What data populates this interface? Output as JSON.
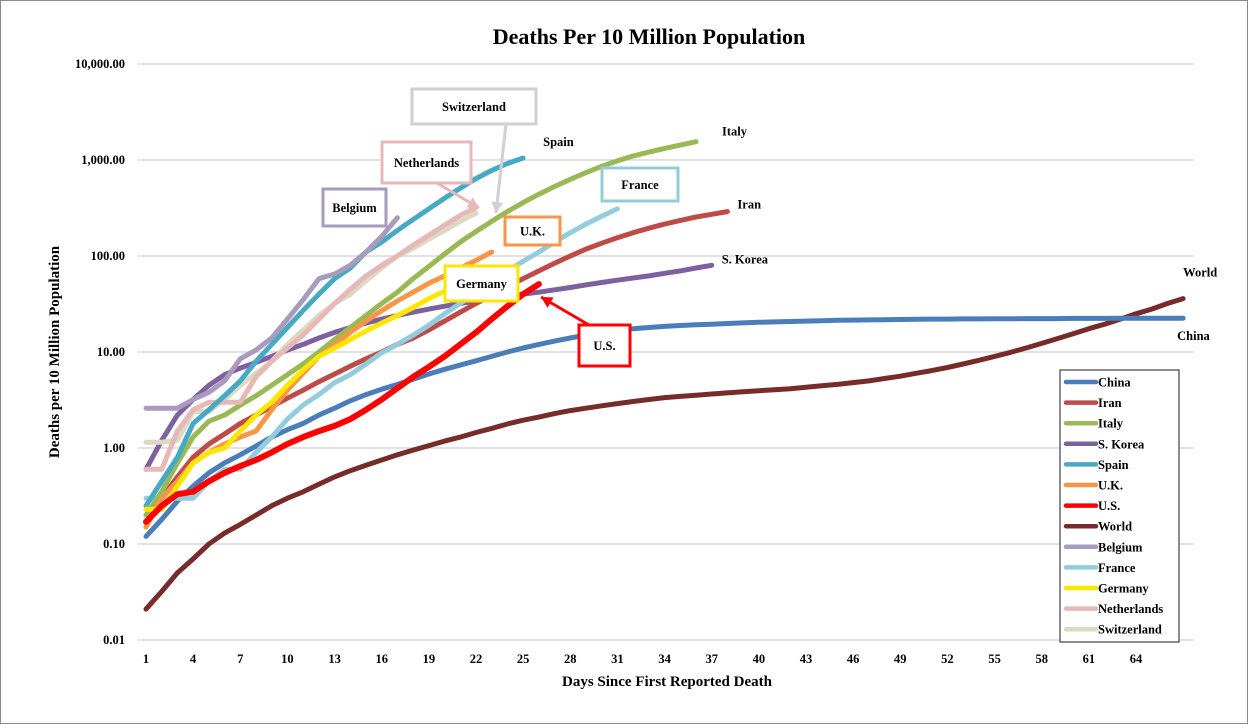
{
  "chart_data": {
    "type": "line",
    "title": "Deaths Per 10 Million Population",
    "xlabel": "Days Since First Reported Death",
    "ylabel": "Deaths per 10 Million Population",
    "yscale": "log",
    "ylim": [
      0.01,
      10000
    ],
    "xlim": [
      1,
      67
    ],
    "y_ticks": [
      0.01,
      0.1,
      1,
      10,
      100,
      1000,
      10000
    ],
    "y_tick_labels": [
      "0.01",
      "0.10",
      "1.00",
      "10.00",
      "100.00",
      "1,000.00",
      "10,000.00"
    ],
    "x_ticks": [
      1,
      4,
      7,
      10,
      13,
      16,
      19,
      22,
      25,
      28,
      31,
      34,
      37,
      40,
      43,
      46,
      49,
      52,
      55,
      58,
      61,
      64
    ],
    "x_tick_labels": [
      "1",
      "4",
      "7",
      "10",
      "13",
      "16",
      "19",
      "22",
      "25",
      "28",
      "31",
      "34",
      "37",
      "40",
      "43",
      "46",
      "49",
      "52",
      "55",
      "58",
      "61",
      "64"
    ],
    "grid": "horizontal",
    "legend_position": "bottom-right",
    "series": [
      {
        "name": "China",
        "color": "#4a7ebb",
        "values": [
          0.12,
          0.18,
          0.28,
          0.4,
          0.55,
          0.7,
          0.85,
          1.05,
          1.3,
          1.55,
          1.8,
          2.2,
          2.6,
          3.1,
          3.6,
          4.1,
          4.6,
          5.2,
          5.9,
          6.6,
          7.3,
          8.1,
          9.0,
          10.0,
          11.0,
          12.0,
          13.0,
          14.0,
          15.0,
          16.0,
          16.8,
          17.5,
          18.0,
          18.5,
          18.9,
          19.2,
          19.5,
          19.8,
          20.1,
          20.4,
          20.6,
          20.8,
          21.0,
          21.2,
          21.4,
          21.5,
          21.6,
          21.7,
          21.8,
          21.9,
          22.0,
          22.0,
          22.1,
          22.1,
          22.2,
          22.2,
          22.3,
          22.3,
          22.3,
          22.4,
          22.4,
          22.4,
          22.5,
          22.5,
          22.5,
          22.5,
          22.5
        ]
      },
      {
        "name": "Iran",
        "color": "#be4b48",
        "values": [
          0.2,
          0.3,
          0.5,
          0.8,
          1.1,
          1.4,
          1.8,
          2.2,
          2.7,
          3.3,
          4.0,
          4.9,
          5.9,
          7.1,
          8.5,
          10.0,
          12.0,
          14.0,
          17.0,
          21.0,
          26.0,
          32.0,
          39.0,
          48.0,
          58.0,
          70.0,
          84.0,
          100.0,
          118.0,
          136.0,
          155.0,
          175.0,
          195.0,
          215.0,
          235.0,
          255.0,
          272.0,
          290.0
        ]
      },
      {
        "name": "Italy",
        "color": "#98b954",
        "values": [
          0.2,
          0.35,
          0.7,
          1.3,
          1.9,
          2.2,
          2.8,
          3.5,
          4.5,
          5.8,
          7.5,
          10.0,
          13.5,
          18.0,
          24.0,
          32.0,
          42.0,
          58.0,
          78.0,
          105.0,
          140.0,
          180.0,
          230.0,
          290.0,
          360.0,
          440.0,
          530.0,
          630.0,
          740.0,
          860.0,
          980.0,
          1100.0,
          1210.0,
          1320.0,
          1430.0,
          1550.0
        ]
      },
      {
        "name": "S. Korea",
        "color": "#7d60a0",
        "values": [
          0.6,
          1.2,
          2.2,
          3.2,
          4.5,
          5.8,
          6.8,
          7.8,
          9.0,
          10.5,
          12.0,
          14.0,
          16.0,
          18.0,
          20.0,
          22.0,
          24.0,
          26.0,
          28.0,
          30.0,
          32.0,
          34.0,
          36.0,
          38.0,
          40.0,
          42.0,
          44.5,
          47.0,
          50.0,
          53.0,
          56.0,
          59.0,
          62.0,
          66.0,
          70.0,
          75.0,
          80.0
        ]
      },
      {
        "name": "Spain",
        "color": "#46aac5",
        "values": [
          0.25,
          0.45,
          0.8,
          1.8,
          2.5,
          3.5,
          5.0,
          8.0,
          12.0,
          18.0,
          27.0,
          40.0,
          58.0,
          75.0,
          110.0,
          140.0,
          185.0,
          240.0,
          310.0,
          400.0,
          510.0,
          640.0,
          780.0,
          920.0,
          1050.0
        ]
      },
      {
        "name": "U.K.",
        "color": "#f79646",
        "values": [
          0.15,
          0.3,
          0.45,
          0.7,
          0.9,
          1.1,
          1.3,
          1.5,
          2.5,
          4.0,
          6.0,
          9.0,
          12.0,
          16.0,
          21.0,
          27.0,
          34.0,
          42.0,
          52.0,
          62.0,
          75.0,
          90.0,
          110.0
        ]
      },
      {
        "name": "U.S.",
        "color": "#ff0000",
        "values": [
          0.17,
          0.25,
          0.33,
          0.35,
          0.45,
          0.55,
          0.65,
          0.75,
          0.9,
          1.1,
          1.3,
          1.5,
          1.7,
          2.0,
          2.5,
          3.2,
          4.2,
          5.5,
          7.0,
          9.0,
          12.0,
          16.0,
          22.0,
          30.0,
          40.0,
          51.0
        ]
      },
      {
        "name": "World",
        "color": "#772c2a",
        "values": [
          0.021,
          0.032,
          0.05,
          0.07,
          0.1,
          0.13,
          0.16,
          0.2,
          0.25,
          0.3,
          0.35,
          0.42,
          0.5,
          0.58,
          0.66,
          0.75,
          0.85,
          0.95,
          1.06,
          1.18,
          1.3,
          1.45,
          1.6,
          1.78,
          1.95,
          2.1,
          2.28,
          2.45,
          2.6,
          2.75,
          2.9,
          3.05,
          3.2,
          3.35,
          3.45,
          3.55,
          3.65,
          3.75,
          3.85,
          3.95,
          4.05,
          4.15,
          4.3,
          4.45,
          4.6,
          4.8,
          5.0,
          5.3,
          5.6,
          6.0,
          6.4,
          6.9,
          7.5,
          8.2,
          9.0,
          9.9,
          11.0,
          12.3,
          13.8,
          15.5,
          17.5,
          19.5,
          22.0,
          25.0,
          28.0,
          32.0,
          36.0
        ]
      },
      {
        "name": "Belgium",
        "color": "#a99bbd",
        "values": [
          2.6,
          2.6,
          2.6,
          3.2,
          3.8,
          5.0,
          8.5,
          10.5,
          14.0,
          22.0,
          35.0,
          58.0,
          65.0,
          80.0,
          110.0,
          160.0,
          250.0
        ]
      },
      {
        "name": "France",
        "color": "#93cddd",
        "values": [
          0.3,
          0.3,
          0.3,
          0.3,
          0.45,
          0.6,
          0.6,
          0.9,
          1.3,
          2.0,
          2.8,
          3.6,
          4.8,
          5.8,
          7.5,
          9.8,
          12.0,
          15.0,
          19.0,
          25.0,
          32.0,
          42.0,
          55.0,
          70.0,
          88.0,
          110.0,
          140.0,
          175.0,
          215.0,
          260.0,
          310.0
        ]
      },
      {
        "name": "Germany",
        "color": "#ffe600",
        "values": [
          0.23,
          0.23,
          0.4,
          0.7,
          0.9,
          1.0,
          1.5,
          2.2,
          3.0,
          4.5,
          6.5,
          9.0,
          11.0,
          13.5,
          16.5,
          20.0,
          24.0,
          29.0,
          36.0,
          43.0
        ]
      },
      {
        "name": "Netherlands",
        "color": "#e6b9b8",
        "values": [
          0.6,
          0.6,
          1.5,
          2.5,
          3.0,
          3.0,
          3.0,
          5.5,
          8.0,
          11.0,
          15.0,
          22.0,
          32.0,
          45.0,
          62.0,
          80.0,
          100.0,
          130.0,
          165.0,
          210.0,
          265.0,
          320.0
        ]
      },
      {
        "name": "Switzerland",
        "color": "#ddd9c3",
        "values": [
          1.15,
          1.15,
          1.2,
          2.4,
          2.4,
          3.2,
          4.5,
          6.0,
          8.0,
          12.0,
          17.0,
          24.0,
          32.0,
          40.0,
          55.0,
          75.0,
          100.0,
          120.0,
          150.0,
          185.0,
          230.0,
          280.0
        ]
      }
    ],
    "end_labels": [
      {
        "series": "Spain",
        "text": "Spain"
      },
      {
        "series": "Italy",
        "text": "Italy"
      },
      {
        "series": "Iran",
        "text": "Iran"
      },
      {
        "series": "S. Korea",
        "text": "S. Korea"
      },
      {
        "series": "World",
        "text": "World"
      },
      {
        "series": "China",
        "text": "China"
      }
    ],
    "callouts": [
      {
        "text": "Switzerland",
        "series": "Switzerland",
        "color": "#d0d0d0"
      },
      {
        "text": "Netherlands",
        "series": "Netherlands",
        "color": "#e6b9b8"
      },
      {
        "text": "Belgium",
        "series": "Belgium",
        "color": "#a99bbd"
      },
      {
        "text": "France",
        "series": "France",
        "color": "#93cddd"
      },
      {
        "text": "U.K.",
        "series": "U.K.",
        "color": "#f79646"
      },
      {
        "text": "Germany",
        "series": "Germany",
        "color": "#ffe600"
      },
      {
        "text": "U.S.",
        "series": "U.S.",
        "color": "#ff0000"
      }
    ]
  }
}
